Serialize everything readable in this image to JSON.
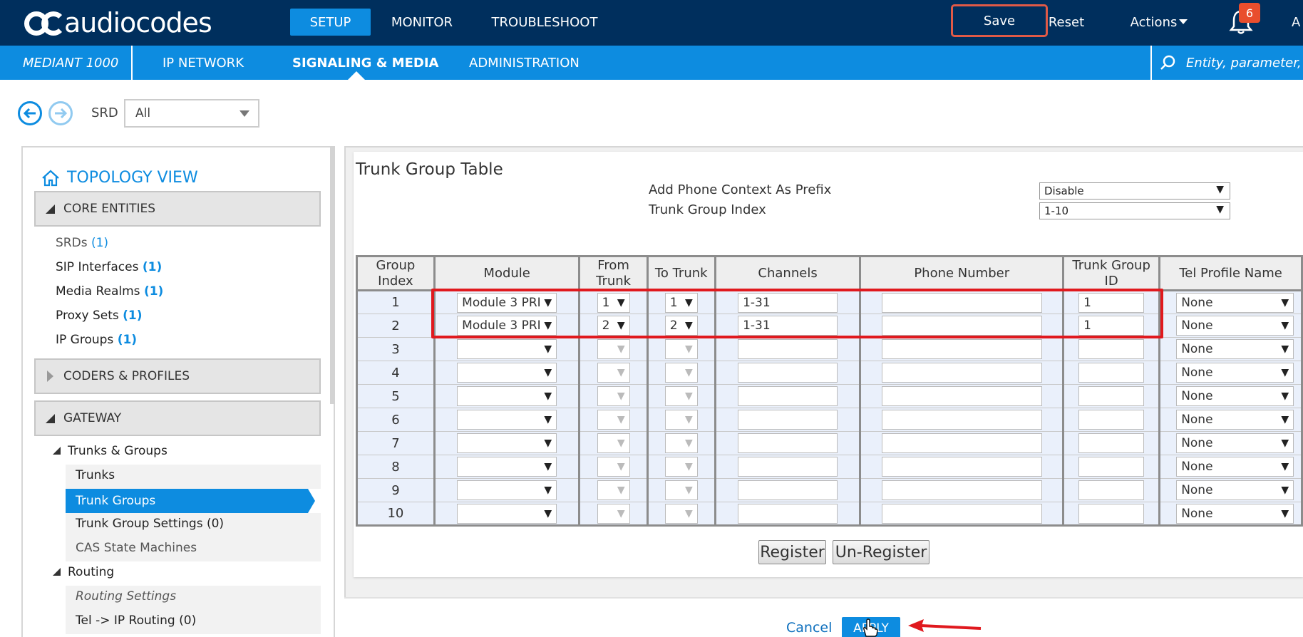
{
  "header": {
    "logo_text": "audiocodes",
    "nav": [
      {
        "label": "SETUP",
        "active": true
      },
      {
        "label": "MONITOR",
        "active": false
      },
      {
        "label": "TROUBLESHOOT",
        "active": false
      }
    ],
    "save_label": "Save",
    "reset_label": "Reset",
    "actions_label": "Actions",
    "notification_count": "6",
    "overflow_letter": "A"
  },
  "subheader": {
    "device": "MEDIANT 1000",
    "nav": [
      {
        "label": "IP NETWORK",
        "active": false
      },
      {
        "label": "SIGNALING & MEDIA",
        "active": true
      },
      {
        "label": "ADMINISTRATION",
        "active": false
      }
    ],
    "search_placeholder": "Entity, parameter, va"
  },
  "srd": {
    "label": "SRD",
    "value": "All"
  },
  "sidebar": {
    "title": "TOPOLOGY VIEW",
    "sections": [
      {
        "label": "CORE ENTITIES",
        "expanded": true
      },
      {
        "label": "CODERS & PROFILES",
        "expanded": false
      },
      {
        "label": "GATEWAY",
        "expanded": true
      }
    ],
    "core_items": [
      {
        "label": "SRDs",
        "count": "(1)"
      },
      {
        "label": "SIP Interfaces",
        "count": "(1)"
      },
      {
        "label": "Media Realms",
        "count": "(1)"
      },
      {
        "label": "Proxy Sets",
        "count": "(1)"
      },
      {
        "label": "IP Groups",
        "count": "(1)"
      }
    ],
    "gateway": {
      "trunks_groups_label": "Trunks & Groups",
      "trunks_label": "Trunks",
      "trunk_groups_label": "Trunk Groups",
      "trunk_group_settings_label": "Trunk Group Settings (0)",
      "cas_label": "CAS State Machines",
      "routing_label": "Routing",
      "routing_settings_label": "Routing Settings",
      "tel_ip_routing_label": "Tel -> IP Routing (0)"
    }
  },
  "trunk_group_table": {
    "title": "Trunk Group Table",
    "params": [
      {
        "label": "Add Phone Context As Prefix",
        "value": "Disable"
      },
      {
        "label": "Trunk Group Index",
        "value": "1-10"
      }
    ],
    "columns": [
      "Group Index",
      "Module",
      "From Trunk",
      "To Trunk",
      "Channels",
      "Phone Number",
      "Trunk Group ID",
      "Tel Profile Name"
    ],
    "rows": [
      {
        "index": "1",
        "module": "Module 3 PRI",
        "from": "1",
        "to": "1",
        "channels": "1-31",
        "phone": "",
        "tgid": "1",
        "profile": "None"
      },
      {
        "index": "2",
        "module": "Module 3 PRI",
        "from": "2",
        "to": "2",
        "channels": "1-31",
        "phone": "",
        "tgid": "1",
        "profile": "None"
      },
      {
        "index": "3",
        "module": "",
        "from": "",
        "to": "",
        "channels": "",
        "phone": "",
        "tgid": "",
        "profile": "None"
      },
      {
        "index": "4",
        "module": "",
        "from": "",
        "to": "",
        "channels": "",
        "phone": "",
        "tgid": "",
        "profile": "None"
      },
      {
        "index": "5",
        "module": "",
        "from": "",
        "to": "",
        "channels": "",
        "phone": "",
        "tgid": "",
        "profile": "None"
      },
      {
        "index": "6",
        "module": "",
        "from": "",
        "to": "",
        "channels": "",
        "phone": "",
        "tgid": "",
        "profile": "None"
      },
      {
        "index": "7",
        "module": "",
        "from": "",
        "to": "",
        "channels": "",
        "phone": "",
        "tgid": "",
        "profile": "None"
      },
      {
        "index": "8",
        "module": "",
        "from": "",
        "to": "",
        "channels": "",
        "phone": "",
        "tgid": "",
        "profile": "None"
      },
      {
        "index": "9",
        "module": "",
        "from": "",
        "to": "",
        "channels": "",
        "phone": "",
        "tgid": "",
        "profile": "None"
      },
      {
        "index": "10",
        "module": "",
        "from": "",
        "to": "",
        "channels": "",
        "phone": "",
        "tgid": "",
        "profile": "None"
      }
    ],
    "register_label": "Register",
    "unregister_label": "Un-Register"
  },
  "footer": {
    "cancel_label": "Cancel",
    "apply_label": "APPLY"
  },
  "colors": {
    "header_bg": "#002f5d",
    "accent": "#0d8ce0",
    "highlight": "#e0191e",
    "badge": "#e94e2d"
  }
}
